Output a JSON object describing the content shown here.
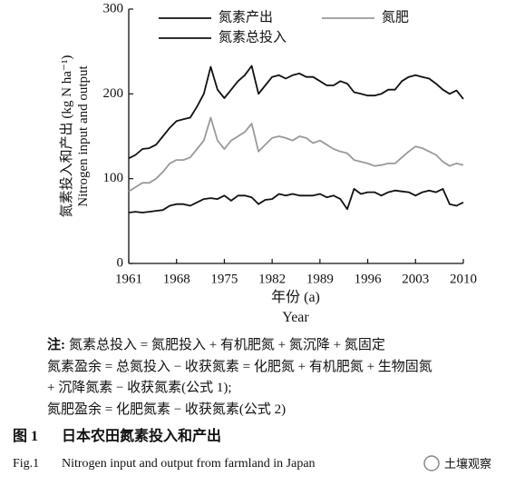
{
  "chart_data": {
    "type": "line",
    "y_label_cn": "氮素投入和产出 (kg N ha⁻¹)",
    "y_label_en": "Nitrogen input and output",
    "x_label_cn": "年份 (a)",
    "x_label_en": "Year",
    "x": [
      1961,
      1962,
      1963,
      1964,
      1965,
      1966,
      1967,
      1968,
      1969,
      1970,
      1971,
      1972,
      1973,
      1974,
      1975,
      1976,
      1977,
      1978,
      1979,
      1980,
      1981,
      1982,
      1983,
      1984,
      1985,
      1986,
      1987,
      1988,
      1989,
      1990,
      1991,
      1992,
      1993,
      1994,
      1995,
      1996,
      1997,
      1998,
      1999,
      2000,
      2001,
      2002,
      2003,
      2004,
      2005,
      2006,
      2007,
      2008,
      2009,
      2010
    ],
    "series": [
      {
        "name": "氮素产出",
        "color": "#111111",
        "values": [
          60,
          61,
          60,
          61,
          62,
          63,
          68,
          70,
          70,
          68,
          72,
          76,
          77,
          76,
          80,
          74,
          80,
          80,
          78,
          70,
          75,
          76,
          82,
          80,
          82,
          80,
          80,
          80,
          82,
          78,
          80,
          76,
          64,
          88,
          82,
          84,
          84,
          80,
          84,
          86,
          85,
          84,
          80,
          84,
          86,
          84,
          88,
          70,
          68,
          72
        ]
      },
      {
        "name": "氮肥",
        "color": "#9a9a9a",
        "values": [
          85,
          90,
          95,
          95,
          100,
          108,
          118,
          122,
          122,
          125,
          135,
          145,
          172,
          145,
          135,
          145,
          150,
          155,
          165,
          132,
          140,
          148,
          150,
          148,
          145,
          150,
          148,
          142,
          145,
          140,
          135,
          132,
          130,
          122,
          120,
          118,
          115,
          116,
          118,
          118,
          125,
          132,
          138,
          136,
          132,
          128,
          120,
          115,
          118,
          116
        ]
      },
      {
        "name": "氮素总投入",
        "color": "#111111",
        "values": [
          124,
          128,
          135,
          136,
          140,
          150,
          160,
          168,
          170,
          172,
          185,
          200,
          232,
          205,
          195,
          205,
          215,
          222,
          233,
          200,
          210,
          220,
          222,
          218,
          222,
          224,
          220,
          220,
          215,
          210,
          210,
          215,
          212,
          202,
          200,
          198,
          198,
          200,
          205,
          205,
          215,
          220,
          222,
          220,
          218,
          212,
          205,
          200,
          204,
          194
        ]
      }
    ],
    "xlim": [
      1961,
      2010
    ],
    "xticks": [
      1961,
      1968,
      1975,
      1982,
      1989,
      1996,
      2003,
      2010
    ],
    "ylim": [
      0,
      300
    ],
    "yticks": [
      0,
      100,
      200,
      300
    ]
  },
  "notes": {
    "label": "注:",
    "lines": [
      "氮素总投入 = 氮肥投入 + 有机肥氮 + 氮沉降 + 氮固定",
      "氮素盈余 = 总氮投入 − 收获氮素 = 化肥氮 + 有机肥氮 + 生物固氮",
      "+ 沉降氮素 − 收获氮素(公式 1);",
      "氮肥盈余 = 化肥氮素 − 收获氮素(公式 2)"
    ]
  },
  "caption": {
    "label_cn": "图 1",
    "title_cn": "日本农田氮素投入和产出",
    "label_en": "Fig.1",
    "title_en": "Nitrogen input and output from farmland in Japan"
  },
  "watermark": "土壤观察"
}
